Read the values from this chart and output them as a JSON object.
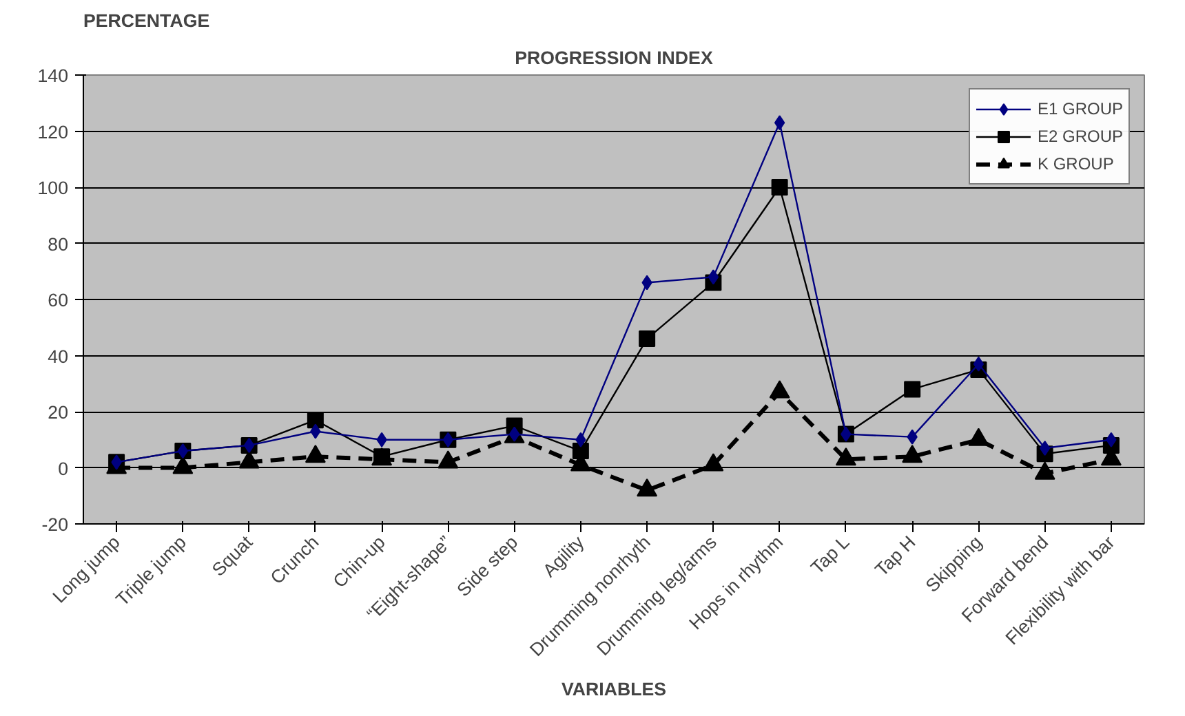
{
  "chart_data": {
    "type": "line",
    "title": "PROGRESSION INDEX",
    "ylabel": "PERCENTAGE",
    "xlabel": "VARIABLES",
    "categories": [
      "Long jump",
      "Triple jump",
      "Squat",
      "Crunch",
      "Chin-up",
      "“Eight-shape”",
      "Side step",
      "Agility",
      "Drumming nonrhyth",
      "Drumming leg/arms",
      "Hops in rhythm",
      "Tap L",
      "Tap H",
      "Skipping",
      "Forward bend",
      "Flexibility with bar"
    ],
    "series": [
      {
        "name": "E1 GROUP",
        "color": "#000080",
        "marker": "diamond",
        "line_style": "solid",
        "values": [
          2,
          6,
          8,
          13,
          10,
          10,
          12,
          10,
          66,
          68,
          123,
          12,
          11,
          37,
          7,
          10
        ]
      },
      {
        "name": "E2 GROUP",
        "color": "#000000",
        "marker": "square",
        "line_style": "solid",
        "values": [
          2,
          6,
          8,
          17,
          4,
          10,
          15,
          6,
          46,
          66,
          100,
          12,
          28,
          35,
          5,
          8
        ]
      },
      {
        "name": "K GROUP",
        "color": "#000000",
        "marker": "triangle",
        "line_style": "dashed",
        "values": [
          0,
          0,
          2,
          4,
          3,
          2,
          11,
          1,
          -8,
          1,
          27,
          3,
          4,
          10,
          -2,
          3
        ]
      }
    ],
    "ylim": [
      -20,
      140
    ],
    "yticks": [
      -20,
      0,
      20,
      40,
      60,
      80,
      100,
      120,
      140
    ],
    "grid": "y",
    "legend": "top right"
  }
}
